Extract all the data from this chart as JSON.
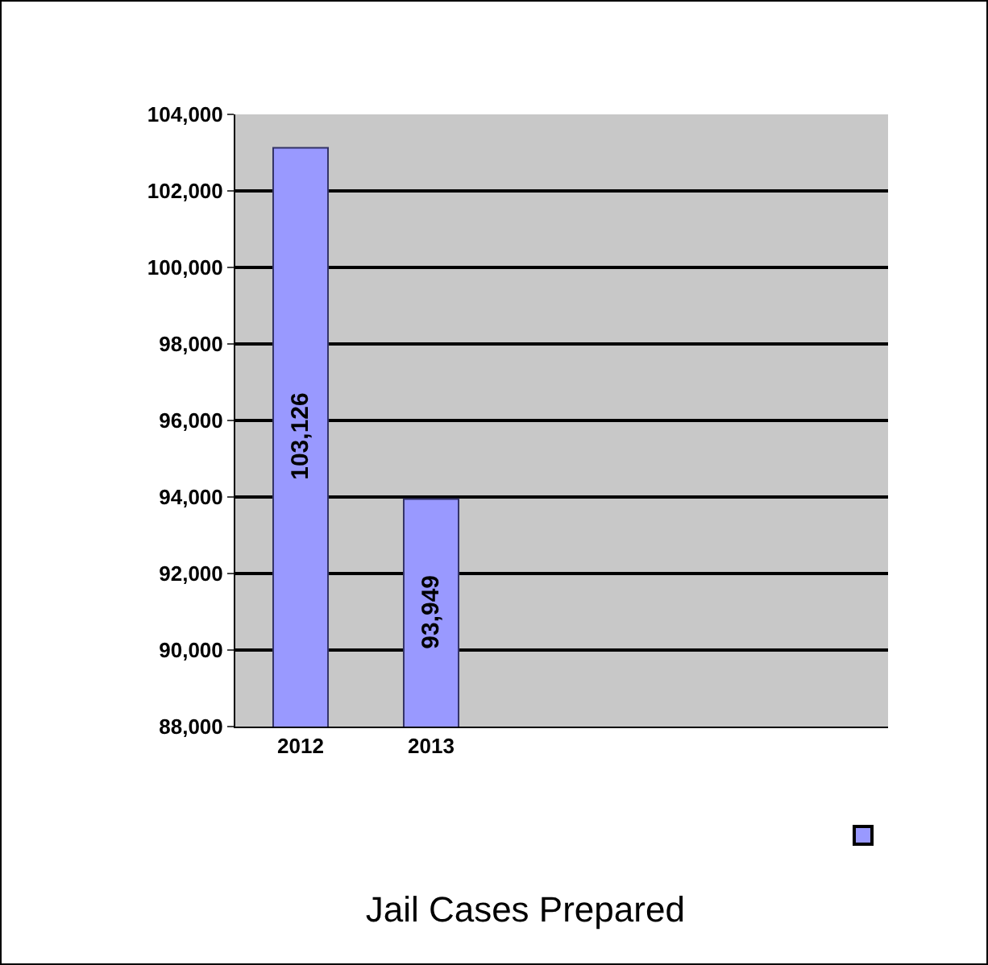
{
  "chart_data": {
    "type": "bar",
    "title": "Jail Cases Prepared",
    "categories": [
      "2012",
      "2013",
      null,
      null,
      null
    ],
    "series": [
      {
        "color": "#9999ff",
        "values": [
          103126,
          93949,
          null,
          null,
          null
        ],
        "value_labels": [
          "103,126",
          "93,949",
          null,
          null,
          null
        ]
      }
    ],
    "ylim": [
      88000,
      104000
    ],
    "yticks": [
      {
        "value": 88000,
        "label": "88,000"
      },
      {
        "value": 90000,
        "label": "90,000"
      },
      {
        "value": 92000,
        "label": "92,000"
      },
      {
        "value": 94000,
        "label": "94,000"
      },
      {
        "value": 96000,
        "label": "96,000"
      },
      {
        "value": 98000,
        "label": "98,000"
      },
      {
        "value": 100000,
        "label": "100,000"
      },
      {
        "value": 102000,
        "label": "102,000"
      },
      {
        "value": 104000,
        "label": "104,000"
      }
    ],
    "grid": "y"
  }
}
